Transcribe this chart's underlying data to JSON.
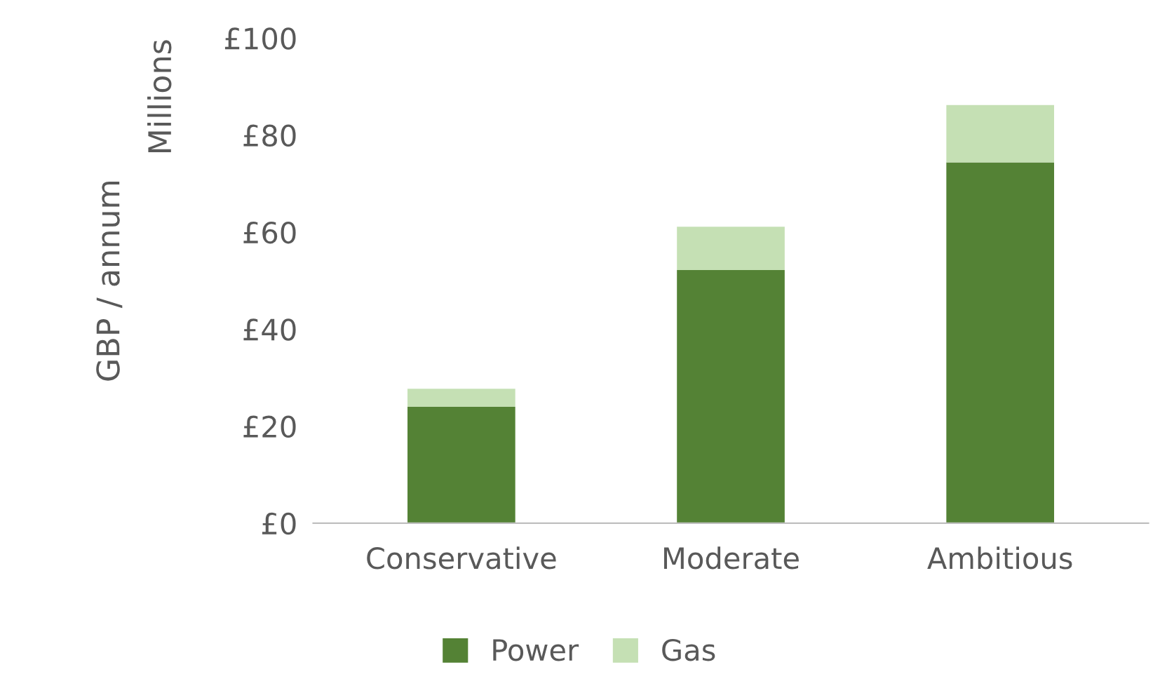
{
  "chart_data": {
    "type": "bar",
    "stacked": true,
    "ylabel": "GBP / annum",
    "annotations": [
      "Millions"
    ],
    "categories": [
      "Conservative",
      "Moderate",
      "Ambitious"
    ],
    "series": [
      {
        "name": "Power",
        "color": "#548235",
        "values": [
          24,
          52.2,
          74.4
        ]
      },
      {
        "name": "Gas",
        "color": "#c5e0b4",
        "values": [
          3.7,
          8.9,
          11.8
        ]
      }
    ],
    "ylim": [
      0,
      100
    ],
    "yticks": [
      {
        "value": 0,
        "label": "£0"
      },
      {
        "value": 20,
        "label": "£20"
      },
      {
        "value": 40,
        "label": "£40"
      },
      {
        "value": 60,
        "label": "£60"
      },
      {
        "value": 80,
        "label": "£80"
      },
      {
        "value": 100,
        "label": "£100"
      }
    ],
    "grid": false,
    "legend": "bottom"
  }
}
